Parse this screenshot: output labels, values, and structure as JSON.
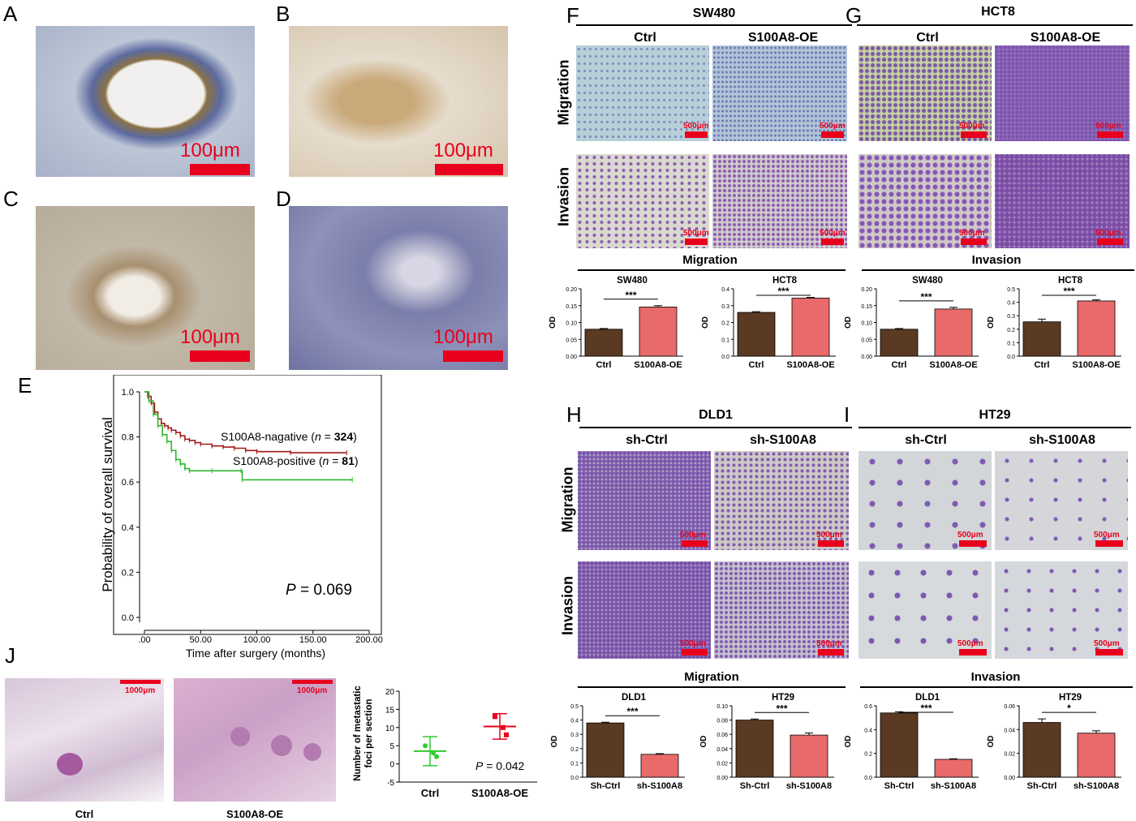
{
  "panels": {
    "A": {
      "label": "A",
      "scale": "100μm",
      "bg": "#b9c2cf"
    },
    "B": {
      "label": "B",
      "scale": "100μm",
      "bg": "#d8c9b4"
    },
    "C": {
      "label": "C",
      "scale": "100μm",
      "bg": "#c6b9a6"
    },
    "D": {
      "label": "D",
      "scale": "100μm",
      "bg": "#8f92b8"
    },
    "E": {
      "label": "E"
    },
    "J": {
      "label": "J",
      "images": [
        {
          "caption": "Ctrl",
          "scale": "1000μm"
        },
        {
          "caption": "S100A8-OE",
          "scale": "1000μm"
        }
      ]
    },
    "F": {
      "label": "F",
      "cell": "SW480",
      "cols": [
        "Ctrl",
        "S100A8-OE"
      ],
      "rows": [
        "Migration",
        "Invasion"
      ],
      "scale": "500μm"
    },
    "G": {
      "label": "G",
      "cell": "HCT8",
      "cols": [
        "Ctrl",
        "S100A8-OE"
      ],
      "scale": "500μm"
    },
    "H": {
      "label": "H",
      "cell": "DLD1",
      "cols": [
        "sh-Ctrl",
        "sh-S100A8"
      ],
      "rows": [
        "Migration",
        "Invasion"
      ],
      "scale": "500μm"
    },
    "I": {
      "label": "I",
      "cell": "HT29",
      "cols": [
        "sh-Ctrl",
        "sh-S100A8"
      ],
      "scale": "500μm"
    }
  },
  "bar_section_titles": {
    "top_left": "Migration",
    "top_right": "Invasion",
    "bottom_left": "Migration",
    "bottom_right": "Invasion"
  },
  "colors": {
    "dark_bar": "#5a3a22",
    "red_bar": "#e86a6a",
    "km_negative": "#a31a1a",
    "km_positive": "#2db82d",
    "scalebar": "#e8001c",
    "green_dot": "#2ecc2e",
    "red_dot": "#e8001c"
  },
  "chart_data": [
    {
      "id": "E",
      "type": "line",
      "xlabel": "Time after surgery (months)",
      "ylabel": "Probability of overall survival",
      "xticks": [
        ".00",
        "50.00",
        "100.00",
        "150.00",
        "200.00"
      ],
      "yticks": [
        "0.0",
        "0.2",
        "0.4",
        "0.6",
        "0.8",
        "1.0"
      ],
      "xlim": [
        0,
        200
      ],
      "ylim": [
        0,
        1
      ],
      "annotation": {
        "prefix": "P",
        "value": "= 0.069"
      },
      "series": [
        {
          "name": "S100A8-nagative",
          "n": "324",
          "points": [
            [
              0,
              1.0
            ],
            [
              3,
              0.98
            ],
            [
              6,
              0.95
            ],
            [
              9,
              0.91
            ],
            [
              12,
              0.88
            ],
            [
              15,
              0.86
            ],
            [
              18,
              0.85
            ],
            [
              21,
              0.84
            ],
            [
              24,
              0.83
            ],
            [
              28,
              0.82
            ],
            [
              32,
              0.805
            ],
            [
              36,
              0.79
            ],
            [
              40,
              0.785
            ],
            [
              45,
              0.775
            ],
            [
              50,
              0.768
            ],
            [
              60,
              0.76
            ],
            [
              70,
              0.755
            ],
            [
              80,
              0.75
            ],
            [
              90,
              0.74
            ],
            [
              100,
              0.735
            ],
            [
              130,
              0.73
            ],
            [
              180,
              0.73
            ]
          ]
        },
        {
          "name": "S100A8-positive",
          "n": "81",
          "points": [
            [
              0,
              1.0
            ],
            [
              4,
              0.96
            ],
            [
              8,
              0.9
            ],
            [
              12,
              0.85
            ],
            [
              16,
              0.81
            ],
            [
              20,
              0.78
            ],
            [
              24,
              0.74
            ],
            [
              28,
              0.7
            ],
            [
              32,
              0.68
            ],
            [
              36,
              0.66
            ],
            [
              40,
              0.65
            ],
            [
              60,
              0.65
            ],
            [
              86,
              0.65
            ],
            [
              87,
              0.61
            ],
            [
              185,
              0.61
            ]
          ]
        }
      ]
    },
    {
      "id": "J-dot",
      "type": "scatter",
      "ylabel": "Number of metastatic\nfoci per section",
      "yticks": [
        "-5",
        "0",
        "5",
        "10",
        "15",
        "20"
      ],
      "ylim": [
        -5,
        20
      ],
      "categories": [
        "Ctrl",
        "S100A8-OE"
      ],
      "points": [
        [
          1,
          5
        ],
        [
          1,
          3
        ],
        [
          1,
          2
        ],
        [
          2,
          13
        ],
        [
          2,
          10
        ],
        [
          2,
          8
        ]
      ],
      "means": [
        3.5,
        10.3
      ],
      "sd": [
        4,
        3.5
      ],
      "annotation": {
        "prefix": "P",
        "value": "= 0.042"
      }
    },
    {
      "id": "F-mig",
      "type": "bar",
      "title": "SW480",
      "categories": [
        "Ctrl",
        "S100A8-OE"
      ],
      "values": [
        0.08,
        0.146
      ],
      "errors": [
        0.002,
        0.004
      ],
      "ylabel": "OD",
      "yticks": [
        "0.00",
        "0.05",
        "0.10",
        "0.15",
        "0.20"
      ],
      "ylim": [
        0,
        0.2
      ],
      "sig": "***"
    },
    {
      "id": "F-inv",
      "type": "bar",
      "title": "HCT8",
      "categories": [
        "Ctrl",
        "S100A8-OE"
      ],
      "values": [
        0.26,
        0.345
      ],
      "errors": [
        0.004,
        0.004
      ],
      "ylabel": "OD",
      "yticks": [
        "0.0",
        "0.1",
        "0.2",
        "0.3",
        "0.4"
      ],
      "ylim": [
        0,
        0.4
      ],
      "sig": "***"
    },
    {
      "id": "G-mig",
      "type": "bar",
      "title": "SW480",
      "categories": [
        "Ctrl",
        "S100A8-OE"
      ],
      "values": [
        0.08,
        0.14
      ],
      "errors": [
        0.002,
        0.005
      ],
      "ylabel": "OD",
      "yticks": [
        "0.00",
        "0.05",
        "0.10",
        "0.15",
        "0.20"
      ],
      "ylim": [
        0,
        0.2
      ],
      "sig": "***"
    },
    {
      "id": "G-inv",
      "type": "bar",
      "title": "HCT8",
      "categories": [
        "Ctrl",
        "S100A8-OE"
      ],
      "values": [
        0.255,
        0.41
      ],
      "errors": [
        0.02,
        0.008
      ],
      "ylabel": "OD",
      "yticks": [
        "0.0",
        "0.1",
        "0.2",
        "0.3",
        "0.4",
        "0.5"
      ],
      "ylim": [
        0,
        0.5
      ],
      "sig": "***"
    },
    {
      "id": "H-mig",
      "type": "bar",
      "title": "DLD1",
      "categories": [
        "Sh-Ctrl",
        "sh-S100A8"
      ],
      "values": [
        0.38,
        0.16
      ],
      "errors": [
        0.005,
        0.005
      ],
      "ylabel": "OD",
      "yticks": [
        "0.0",
        "0.1",
        "0.2",
        "0.3",
        "0.4",
        "0.5"
      ],
      "ylim": [
        0,
        0.5
      ],
      "sig": "***"
    },
    {
      "id": "H-inv",
      "type": "bar",
      "title": "HT29",
      "categories": [
        "Sh-Ctrl",
        "sh-S100A8"
      ],
      "values": [
        0.08,
        0.059
      ],
      "errors": [
        0.0015,
        0.003
      ],
      "ylabel": "OD",
      "yticks": [
        "0.00",
        "0.02",
        "0.04",
        "0.06",
        "0.08",
        "0.10"
      ],
      "ylim": [
        0,
        0.1
      ],
      "sig": "***"
    },
    {
      "id": "I-mig",
      "type": "bar",
      "title": "DLD1",
      "categories": [
        "Sh-Ctrl",
        "sh-S100A8"
      ],
      "values": [
        0.54,
        0.15
      ],
      "errors": [
        0.01,
        0.005
      ],
      "ylabel": "OD",
      "yticks": [
        "0.0",
        "0.2",
        "0.4",
        "0.6"
      ],
      "ylim": [
        0,
        0.6
      ],
      "sig": "***"
    },
    {
      "id": "I-inv",
      "type": "bar",
      "title": "HT29",
      "categories": [
        "Sh-Ctrl",
        "sh-S100A8"
      ],
      "values": [
        0.046,
        0.037
      ],
      "errors": [
        0.003,
        0.002
      ],
      "ylabel": "OD",
      "yticks": [
        "0.00",
        "0.02",
        "0.04",
        "0.06"
      ],
      "ylim": [
        0,
        0.06
      ],
      "sig": "*"
    }
  ]
}
